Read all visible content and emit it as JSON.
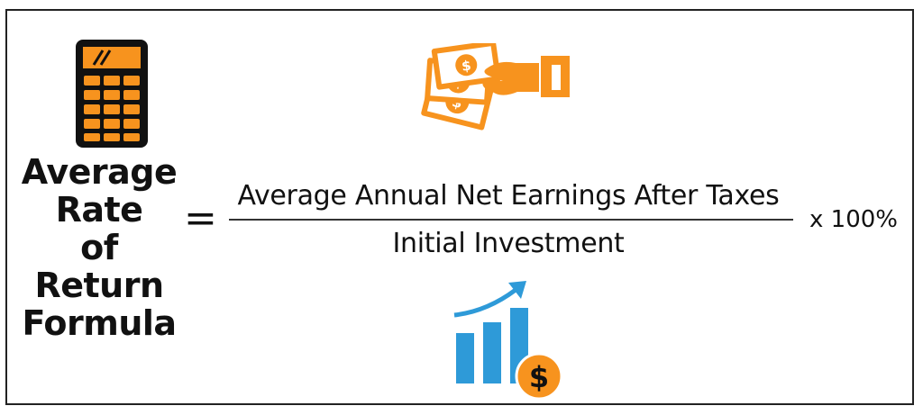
{
  "formula": {
    "title_lines": [
      "Average",
      "Rate",
      "of Return",
      "Formula"
    ],
    "equals": "=",
    "numerator": "Average Annual Net Earnings After Taxes",
    "denominator": "Initial Investment",
    "multiplier": "x 100%"
  },
  "icons": {
    "calculator": "calculator-icon",
    "money_hand": "hand-holding-money-icon",
    "growth_chart": "bar-chart-growth-dollar-icon"
  },
  "colors": {
    "accent_orange": "#F7931E",
    "dark": "#111111",
    "chart_blue": "#2E9AD8"
  }
}
